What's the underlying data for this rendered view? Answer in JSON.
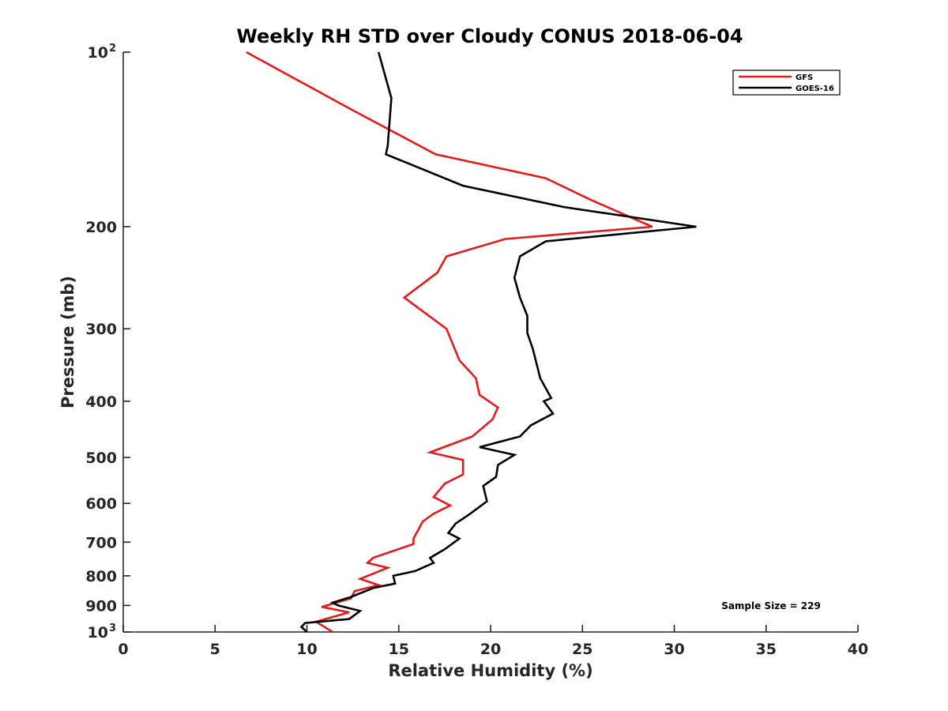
{
  "chart_data": {
    "type": "line",
    "title": "Weekly RH STD over Cloudy CONUS 2018-06-04",
    "xlabel": "Relative Humidity (%)",
    "ylabel": "Pressure (mb)",
    "xlim": [
      0,
      40
    ],
    "ylim": [
      100,
      1000
    ],
    "y_scale": "log",
    "y_reversed": true,
    "x_ticks": [
      "0",
      "5",
      "10",
      "15",
      "20",
      "25",
      "30",
      "35",
      "40"
    ],
    "x_tick_values": [
      0,
      5,
      10,
      15,
      20,
      25,
      30,
      35,
      40
    ],
    "y_ticks": [
      {
        "value": 100,
        "label": "10",
        "exp": "2"
      },
      {
        "value": 200,
        "label": "200",
        "exp": ""
      },
      {
        "value": 300,
        "label": "300",
        "exp": ""
      },
      {
        "value": 400,
        "label": "400",
        "exp": ""
      },
      {
        "value": 500,
        "label": "500",
        "exp": ""
      },
      {
        "value": 600,
        "label": "600",
        "exp": ""
      },
      {
        "value": 700,
        "label": "700",
        "exp": ""
      },
      {
        "value": 800,
        "label": "800",
        "exp": ""
      },
      {
        "value": 900,
        "label": "900",
        "exp": ""
      },
      {
        "value": 1000,
        "label": "10",
        "exp": "3"
      }
    ],
    "grid": false,
    "legend_position": "top-right",
    "annotation": "Sample Size = 229",
    "series": [
      {
        "name": "GFS",
        "color": "#e41a1c",
        "points": [
          [
            6.7,
            100
          ],
          [
            12.3,
            125
          ],
          [
            17.0,
            150
          ],
          [
            23.0,
            165
          ],
          [
            25.5,
            180
          ],
          [
            28.8,
            200
          ],
          [
            20.8,
            210
          ],
          [
            17.6,
            225
          ],
          [
            17.1,
            240
          ],
          [
            15.3,
            265
          ],
          [
            17.6,
            300
          ],
          [
            18.3,
            340
          ],
          [
            19.2,
            365
          ],
          [
            19.4,
            390
          ],
          [
            20.4,
            410
          ],
          [
            20.1,
            430
          ],
          [
            19.0,
            460
          ],
          [
            16.7,
            490
          ],
          [
            18.5,
            505
          ],
          [
            18.5,
            535
          ],
          [
            17.5,
            555
          ],
          [
            16.9,
            585
          ],
          [
            17.8,
            605
          ],
          [
            16.9,
            625
          ],
          [
            16.3,
            645
          ],
          [
            15.8,
            690
          ],
          [
            15.8,
            705
          ],
          [
            13.6,
            745
          ],
          [
            13.3,
            760
          ],
          [
            14.4,
            775
          ],
          [
            12.9,
            810
          ],
          [
            13.9,
            830
          ],
          [
            12.6,
            850
          ],
          [
            12.4,
            875
          ],
          [
            10.8,
            905
          ],
          [
            12.3,
            925
          ],
          [
            10.5,
            960
          ],
          [
            11.4,
            1000
          ]
        ]
      },
      {
        "name": "GOES-16",
        "color": "#000000",
        "points": [
          [
            13.9,
            100
          ],
          [
            14.6,
            120
          ],
          [
            14.4,
            145
          ],
          [
            14.3,
            150
          ],
          [
            18.5,
            170
          ],
          [
            24.0,
            185
          ],
          [
            31.2,
            200
          ],
          [
            23.0,
            212
          ],
          [
            21.6,
            225
          ],
          [
            21.3,
            245
          ],
          [
            21.6,
            265
          ],
          [
            22.0,
            285
          ],
          [
            22.0,
            305
          ],
          [
            22.3,
            325
          ],
          [
            22.7,
            365
          ],
          [
            23.3,
            395
          ],
          [
            22.9,
            400
          ],
          [
            23.4,
            420
          ],
          [
            22.2,
            440
          ],
          [
            21.6,
            460
          ],
          [
            19.4,
            480
          ],
          [
            21.3,
            495
          ],
          [
            20.4,
            515
          ],
          [
            20.3,
            540
          ],
          [
            19.6,
            560
          ],
          [
            19.8,
            595
          ],
          [
            18.9,
            625
          ],
          [
            18.1,
            650
          ],
          [
            17.7,
            675
          ],
          [
            18.3,
            690
          ],
          [
            17.5,
            720
          ],
          [
            16.7,
            745
          ],
          [
            16.9,
            760
          ],
          [
            15.9,
            785
          ],
          [
            14.7,
            800
          ],
          [
            14.8,
            825
          ],
          [
            13.6,
            840
          ],
          [
            12.4,
            870
          ],
          [
            11.4,
            890
          ],
          [
            11.7,
            900
          ],
          [
            12.9,
            920
          ],
          [
            12.3,
            950
          ],
          [
            9.9,
            965
          ],
          [
            9.7,
            980
          ],
          [
            10.0,
            1000
          ]
        ]
      }
    ]
  }
}
